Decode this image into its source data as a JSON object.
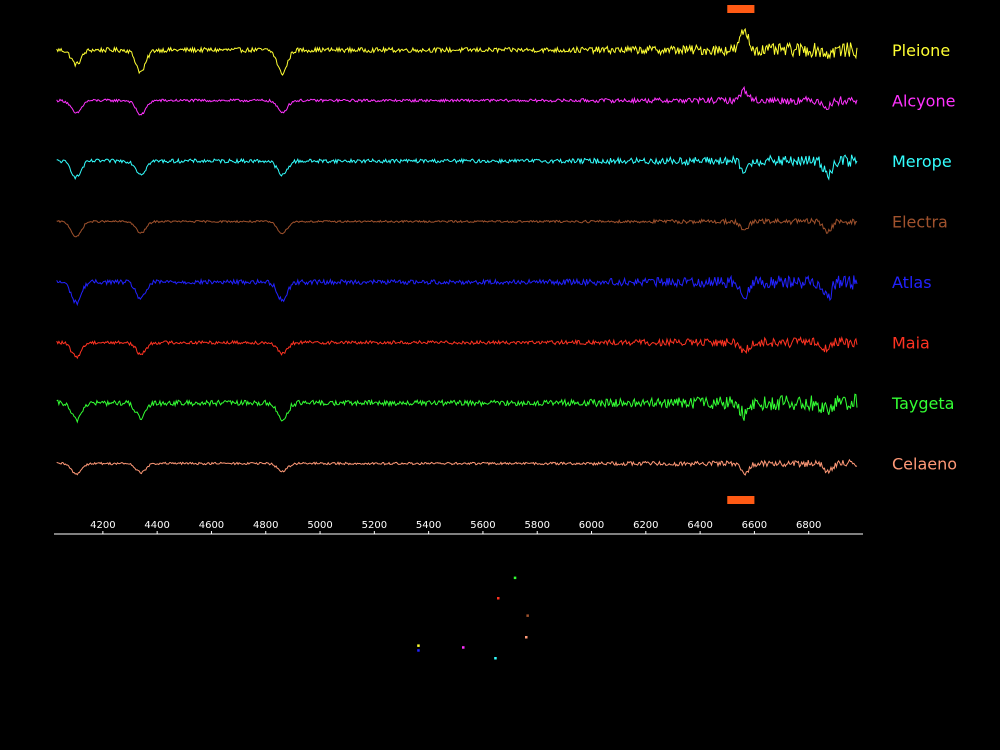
{
  "chart_data": {
    "type": "line",
    "title": "",
    "xlabel": "",
    "ylabel": "",
    "xlim": [
      4020,
      7000
    ],
    "x_ticks": [
      4200,
      4400,
      4600,
      4800,
      5000,
      5200,
      5400,
      5600,
      5800,
      6000,
      6200,
      6400,
      6600,
      6800
    ],
    "grid": false,
    "marker_band": [
      6500,
      6600
    ],
    "marker_color": "#ff5a14",
    "absorption_lines": [
      4102,
      4340,
      4861,
      6563,
      6870
    ],
    "series": [
      {
        "name": "Pleione",
        "color": "#ffff33",
        "emission": true,
        "noise": 0.6,
        "profile": [
          [
            4102,
            -2.2
          ],
          [
            4340,
            -3.4
          ],
          [
            4861,
            -3.6
          ],
          [
            6563,
            3.0
          ],
          [
            6870,
            -0.6
          ]
        ]
      },
      {
        "name": "Alcyone",
        "color": "#ff33ff",
        "emission": true,
        "noise": 0.35,
        "profile": [
          [
            4102,
            -2.0
          ],
          [
            4340,
            -2.2
          ],
          [
            4861,
            -1.8
          ],
          [
            6563,
            1.6
          ],
          [
            6870,
            -1.0
          ]
        ]
      },
      {
        "name": "Merope",
        "color": "#33ffff",
        "emission": false,
        "noise": 0.5,
        "profile": [
          [
            4102,
            -2.5
          ],
          [
            4340,
            -2.0
          ],
          [
            4861,
            -2.2
          ],
          [
            6563,
            -1.6
          ],
          [
            6870,
            -2.0
          ]
        ]
      },
      {
        "name": "Electra",
        "color": "#a0522d",
        "emission": false,
        "noise": 0.25,
        "profile": [
          [
            4102,
            -2.4
          ],
          [
            4340,
            -1.8
          ],
          [
            4861,
            -1.8
          ],
          [
            6563,
            -1.5
          ],
          [
            6870,
            -1.6
          ]
        ]
      },
      {
        "name": "Atlas",
        "color": "#2222ff",
        "emission": false,
        "noise": 0.6,
        "profile": [
          [
            4102,
            -3.2
          ],
          [
            4340,
            -2.6
          ],
          [
            4861,
            -2.8
          ],
          [
            6563,
            -2.0
          ],
          [
            6870,
            -2.2
          ]
        ]
      },
      {
        "name": "Maia",
        "color": "#ff3322",
        "emission": false,
        "noise": 0.45,
        "profile": [
          [
            4102,
            -2.2
          ],
          [
            4340,
            -1.8
          ],
          [
            4861,
            -1.8
          ],
          [
            6563,
            -1.4
          ],
          [
            6870,
            -1.0
          ]
        ]
      },
      {
        "name": "Taygeta",
        "color": "#33ff33",
        "emission": false,
        "noise": 0.7,
        "profile": [
          [
            4102,
            -2.6
          ],
          [
            4340,
            -2.4
          ],
          [
            4861,
            -2.6
          ],
          [
            6563,
            -1.8
          ],
          [
            6870,
            -1.2
          ]
        ]
      },
      {
        "name": "Celaeno",
        "color": "#ff9977",
        "emission": false,
        "noise": 0.3,
        "profile": [
          [
            4102,
            -1.6
          ],
          [
            4340,
            -1.4
          ],
          [
            4861,
            -1.2
          ],
          [
            6563,
            -1.6
          ],
          [
            6870,
            -1.0
          ]
        ]
      }
    ],
    "sky_map": {
      "points": [
        {
          "star": "Pleione",
          "color": "#ffff33",
          "ra": -0.62,
          "dec": -0.34
        },
        {
          "star": "Atlas",
          "color": "#2222ff",
          "ra": -0.62,
          "dec": -0.42
        },
        {
          "star": "Alcyone",
          "color": "#ff33ff",
          "ra": -0.3,
          "dec": -0.37
        },
        {
          "star": "Merope",
          "color": "#33ffff",
          "ra": -0.07,
          "dec": -0.55
        },
        {
          "star": "Maia",
          "color": "#ff3322",
          "ra": -0.05,
          "dec": 0.45
        },
        {
          "star": "Taygeta",
          "color": "#33ff33",
          "ra": 0.07,
          "dec": 0.79
        },
        {
          "star": "Electra",
          "color": "#a0522d",
          "ra": 0.16,
          "dec": 0.16
        },
        {
          "star": "Celaeno",
          "color": "#ff9977",
          "ra": 0.15,
          "dec": -0.2
        }
      ]
    }
  }
}
